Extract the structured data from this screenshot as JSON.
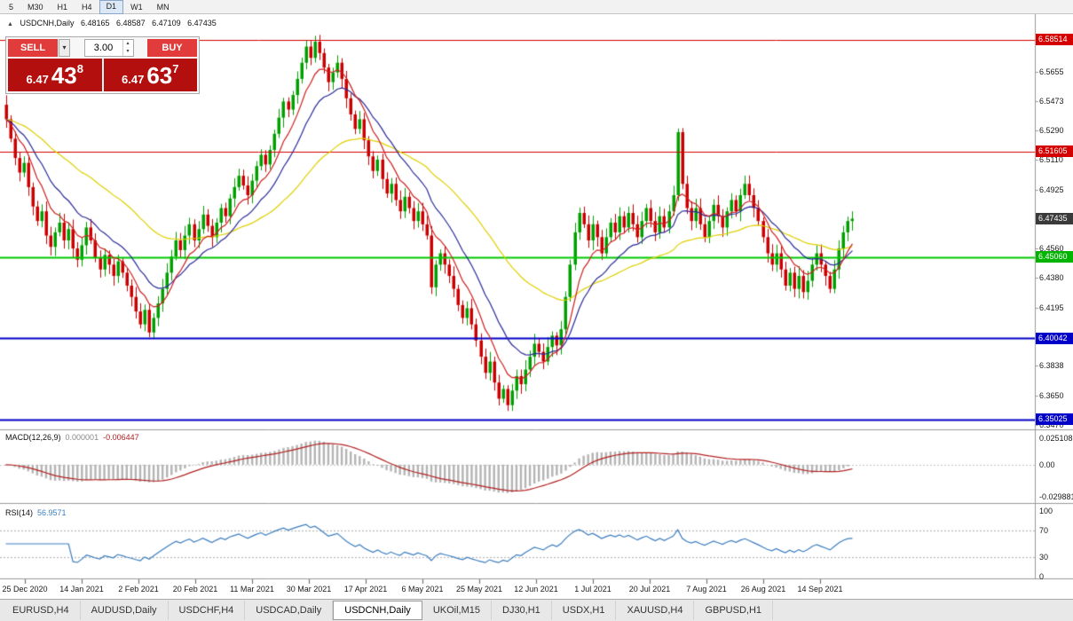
{
  "icons": {
    "caret_down": "▾",
    "caret_up": "▴",
    "collapse": "▲"
  },
  "toolbar": {
    "timeframes": [
      {
        "label": "5",
        "active": false
      },
      {
        "label": "M30",
        "active": false
      },
      {
        "label": "H1",
        "active": false
      },
      {
        "label": "H4",
        "active": false
      },
      {
        "label": "D1",
        "active": true
      },
      {
        "label": "W1",
        "active": false
      },
      {
        "label": "MN",
        "active": false
      }
    ]
  },
  "chart_header": {
    "symbol": "USDCNH,Daily",
    "open": "6.48165",
    "high": "6.48587",
    "low": "6.47109",
    "close": "6.47435"
  },
  "trade_panel": {
    "sell_label": "SELL",
    "buy_label": "BUY",
    "volume": "3.00",
    "sell_price": {
      "base": "6.47",
      "big": "43",
      "sup": "8"
    },
    "buy_price": {
      "base": "6.47",
      "big": "63",
      "sup": "7"
    },
    "button_color": "#e23b3b",
    "price_box_color": "#b30f0f"
  },
  "price_scale": {
    "ticks": [
      "6.5655",
      "6.5473",
      "6.5290",
      "6.5110",
      "6.4925",
      "6.4743",
      "6.4560",
      "6.4380",
      "6.4195",
      "6.3838",
      "6.3650",
      "6.3470"
    ],
    "tags": [
      {
        "text": "6.58514",
        "color": "#d40000"
      },
      {
        "text": "6.51605",
        "color": "#d40000"
      },
      {
        "text": "6.47435",
        "color": "#3a3a3a"
      },
      {
        "text": "6.45060",
        "color": "#00b400"
      },
      {
        "text": "6.40042",
        "color": "#0000c8"
      },
      {
        "text": "6.35025",
        "color": "#0000c8"
      }
    ]
  },
  "indicators": {
    "macd": {
      "title": "MACD(12,26,9)",
      "value": "0.000001",
      "signal_value": "-0.006447",
      "fast": 12,
      "slow": 26,
      "signal": 9,
      "scale_labels": [
        "0.025108",
        "0.00",
        "-0.029881"
      ],
      "histogram_color": "#b4b4b4",
      "signal_color": "#b22222"
    },
    "rsi": {
      "title": "RSI(14)",
      "value": "56.9571",
      "period": 14,
      "levels": [
        70,
        30
      ],
      "scale_labels": [
        "100",
        "70",
        "30",
        "0"
      ],
      "line_color": "#3c7ebf"
    }
  },
  "x_axis": {
    "dates": [
      "25 Dec 2020",
      "14 Jan 2021",
      "2 Feb 2021",
      "20 Feb 2021",
      "11 Mar 2021",
      "30 Mar 2021",
      "17 Apr 2021",
      "6 May 2021",
      "25 May 2021",
      "12 Jun 2021",
      "1 Jul 2021",
      "20 Jul 2021",
      "7 Aug 2021",
      "26 Aug 2021",
      "14 Sep 2021"
    ]
  },
  "tabs": [
    {
      "label": "EURUSD,H4",
      "active": false
    },
    {
      "label": "AUDUSD,Daily",
      "active": false
    },
    {
      "label": "USDCHF,H4",
      "active": false
    },
    {
      "label": "USDCAD,Daily",
      "active": false
    },
    {
      "label": "USDCNH,Daily",
      "active": true
    },
    {
      "label": "UKOil,M15",
      "active": false
    },
    {
      "label": "DJ30,H1",
      "active": false
    },
    {
      "label": "USDX,H1",
      "active": false
    },
    {
      "label": "XAUUSD,H4",
      "active": false
    },
    {
      "label": "GBPUSD,H1",
      "active": false
    }
  ],
  "chart_data": {
    "type": "candlestick",
    "symbol": "USDCNH",
    "timeframe": "Daily",
    "title": "USDCNH,Daily",
    "ohlc_display": {
      "open": 6.48165,
      "high": 6.48587,
      "low": 6.47109,
      "close": 6.47435
    },
    "current_price": 6.47435,
    "y_range": [
      6.344,
      6.6005
    ],
    "first_open": 6.545,
    "wick_base": 0.0022,
    "wick_amp": 0.004,
    "up_color": "#00a000",
    "down_color": "#cc0000",
    "levels": [
      {
        "price": 6.58514,
        "color": "#d40000",
        "width": 1
      },
      {
        "price": 6.51605,
        "color": "#d40000",
        "width": 1
      },
      {
        "price": 6.4506,
        "color": "#00c800",
        "width": 2
      },
      {
        "price": 6.40042,
        "color": "#0000c8",
        "width": 2
      },
      {
        "price": 6.35025,
        "color": "#0000c8",
        "width": 2
      }
    ],
    "moving_averages": [
      {
        "type": "ema",
        "period": 45,
        "color": "#e0d000"
      },
      {
        "type": "ema",
        "period": 16,
        "color": "#2a2a9a"
      },
      {
        "type": "ema",
        "period": 8,
        "color": "#d02020"
      }
    ],
    "closes": [
      6.536,
      6.524,
      6.512,
      6.503,
      6.509,
      6.494,
      6.482,
      6.473,
      6.479,
      6.464,
      6.457,
      6.466,
      6.472,
      6.461,
      6.468,
      6.456,
      6.449,
      6.458,
      6.469,
      6.461,
      6.45,
      6.443,
      6.452,
      6.446,
      6.439,
      6.448,
      6.441,
      6.433,
      6.426,
      6.417,
      6.409,
      6.418,
      6.404,
      6.413,
      6.422,
      6.431,
      6.441,
      6.451,
      6.461,
      6.455,
      6.464,
      6.471,
      6.461,
      6.468,
      6.477,
      6.47,
      6.463,
      6.472,
      6.481,
      6.476,
      6.487,
      6.494,
      6.501,
      6.495,
      6.489,
      6.498,
      6.507,
      6.514,
      6.508,
      6.517,
      6.527,
      6.537,
      6.547,
      6.542,
      6.551,
      6.561,
      6.571,
      6.581,
      6.574,
      6.584,
      6.577,
      6.568,
      6.559,
      6.565,
      6.571,
      6.561,
      6.549,
      6.539,
      6.53,
      6.536,
      6.523,
      6.513,
      6.504,
      6.511,
      6.499,
      6.49,
      6.496,
      6.486,
      6.479,
      6.488,
      6.481,
      6.473,
      6.479,
      6.471,
      6.464,
      6.432,
      6.446,
      6.453,
      6.446,
      6.439,
      6.431,
      6.421,
      6.413,
      6.419,
      6.409,
      6.399,
      6.389,
      6.379,
      6.386,
      6.373,
      6.363,
      6.369,
      6.359,
      6.368,
      6.377,
      6.372,
      6.381,
      6.389,
      6.397,
      6.392,
      6.386,
      6.395,
      6.402,
      6.396,
      6.406,
      6.426,
      6.446,
      6.466,
      6.478,
      6.471,
      6.461,
      6.471,
      6.463,
      6.453,
      6.463,
      6.472,
      6.466,
      6.476,
      6.469,
      6.478,
      6.471,
      6.463,
      6.473,
      6.481,
      6.473,
      6.466,
      6.476,
      6.469,
      6.479,
      6.489,
      6.528,
      6.496,
      6.481,
      6.473,
      6.481,
      6.471,
      6.463,
      6.473,
      6.483,
      6.476,
      6.469,
      6.479,
      6.486,
      6.479,
      6.489,
      6.496,
      6.489,
      6.481,
      6.473,
      6.463,
      6.453,
      6.446,
      6.453,
      6.443,
      6.433,
      6.441,
      6.431,
      6.439,
      6.429,
      6.436,
      6.446,
      6.453,
      6.446,
      6.439,
      6.431,
      6.443,
      6.456,
      6.466,
      6.473,
      6.4744
    ]
  }
}
